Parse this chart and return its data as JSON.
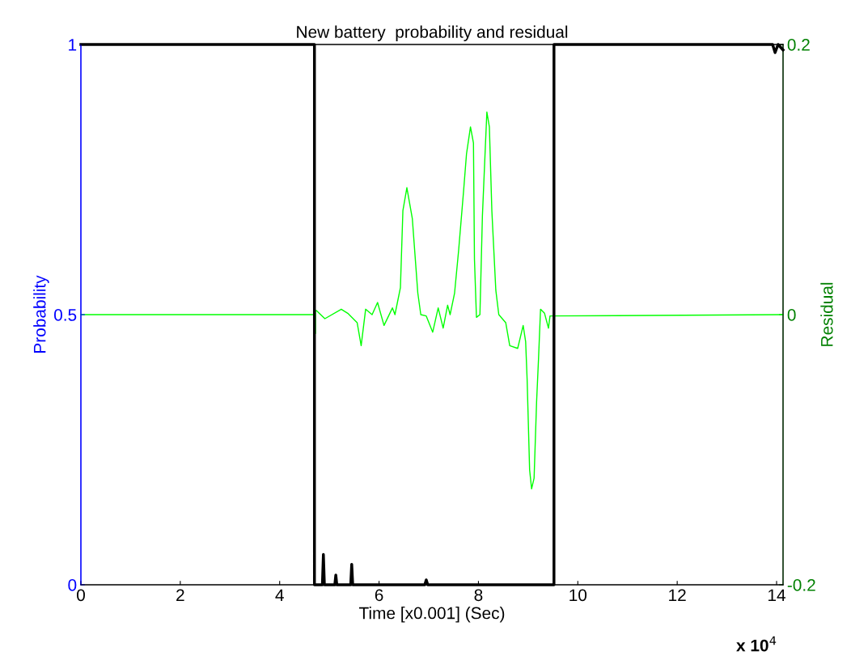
{
  "chart_data": {
    "type": "line",
    "title": "New battery  probability and residual",
    "xlabel": "Time [x0.001] (Sec)",
    "ylabel": "Probability",
    "y2label": "Residual",
    "xlim": [
      0,
      14.13
    ],
    "xticks": [
      0,
      2,
      4,
      6,
      8,
      10,
      12,
      14
    ],
    "ylim": [
      0,
      1
    ],
    "yticks": [
      0,
      0.5,
      1
    ],
    "y2lim": [
      -0.2,
      0.2
    ],
    "y2ticks": [
      -0.2,
      0,
      0.2
    ],
    "annotations": [
      "x 10$^{4}$"
    ],
    "grid": false,
    "legend": false,
    "series": [
      {
        "color": "#000000",
        "x": [
          0,
          4.7,
          4.7,
          4.86,
          4.88,
          4.9,
          5.11,
          5.13,
          5.15,
          5.43,
          5.45,
          5.47,
          6.92,
          6.95,
          6.98,
          9.52,
          9.52,
          13.92,
          13.97,
          14.03,
          14.13
        ],
        "values": [
          1,
          1,
          0,
          0,
          0.056,
          0,
          0,
          0.018,
          0,
          0,
          0.038,
          0,
          0,
          0.009,
          0,
          0,
          1,
          1,
          0.985,
          1,
          0.99
        ]
      },
      {
        "color": "#00ff00",
        "axis": "y2",
        "x": [
          0,
          4.71,
          4.72,
          4.72,
          4.74,
          4.91,
          5.24,
          5.37,
          5.56,
          5.64,
          5.73,
          5.86,
          5.97,
          6.1,
          6.27,
          6.32,
          6.43,
          6.48,
          6.56,
          6.67,
          6.78,
          6.84,
          6.95,
          7.08,
          7.19,
          7.29,
          7.38,
          7.43,
          7.52,
          7.6,
          7.7,
          7.76,
          7.84,
          7.9,
          7.92,
          7.96,
          8.03,
          8.08,
          8.14,
          8.17,
          8.22,
          8.27,
          8.35,
          8.41,
          8.55,
          8.63,
          8.79,
          8.9,
          8.95,
          8.98,
          9.03,
          9.07,
          9.12,
          9.17,
          9.21,
          9.25,
          9.33,
          9.41,
          9.44,
          14.13
        ],
        "values": [
          0,
          0,
          -0.014,
          0.003,
          0.003,
          -0.003,
          0.004,
          0.001,
          -0.006,
          -0.023,
          0.004,
          0,
          0.009,
          -0.008,
          0.005,
          0,
          0.02,
          0.077,
          0.094,
          0.071,
          0.016,
          0,
          -0.001,
          -0.013,
          0.005,
          -0.01,
          0.007,
          0,
          0.016,
          0.047,
          0.091,
          0.119,
          0.139,
          0.127,
          0.041,
          -0.002,
          0,
          0.073,
          0.125,
          0.15,
          0.139,
          0.077,
          0.018,
          0,
          -0.006,
          -0.023,
          -0.025,
          -0.008,
          -0.02,
          -0.048,
          -0.115,
          -0.129,
          -0.121,
          -0.065,
          -0.032,
          0.004,
          0.001,
          -0.01,
          -0.001,
          0
        ]
      }
    ]
  }
}
